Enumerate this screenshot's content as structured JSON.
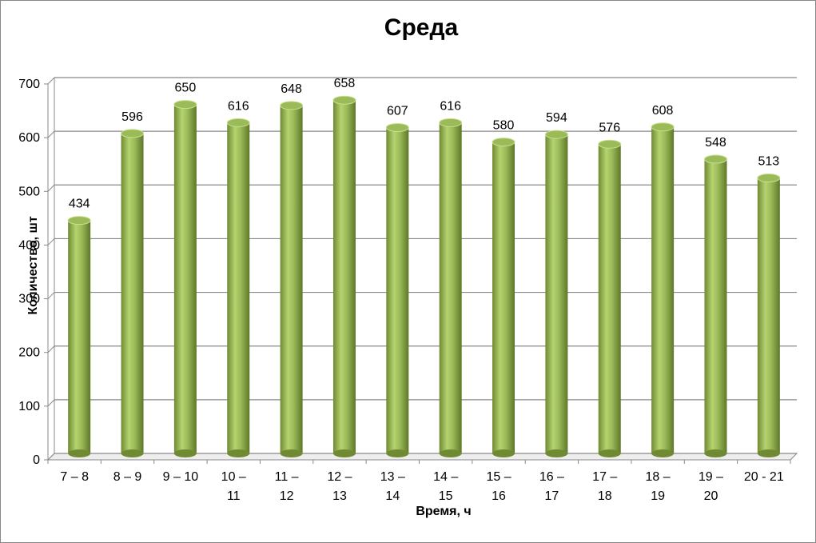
{
  "chart_data": {
    "type": "bar",
    "title": "Среда",
    "x_label": "Время, ч",
    "y_label": "Количество, шт",
    "categories": [
      "7 – 8",
      "8 – 9",
      "9 – 10",
      "10 – 11",
      "11 – 12",
      "12 – 13",
      "13 – 14",
      "14 – 15",
      "15 – 16",
      "16 – 17",
      "17 – 18",
      "18 – 19",
      "19 – 20",
      "20 - 21"
    ],
    "values": [
      434,
      596,
      650,
      616,
      648,
      658,
      607,
      616,
      580,
      594,
      576,
      608,
      548,
      513
    ],
    "color": "#9bbb59",
    "ylim": [
      0,
      700
    ],
    "yticks": [
      0,
      100,
      200,
      300,
      400,
      500,
      600,
      700
    ],
    "grid": true
  }
}
